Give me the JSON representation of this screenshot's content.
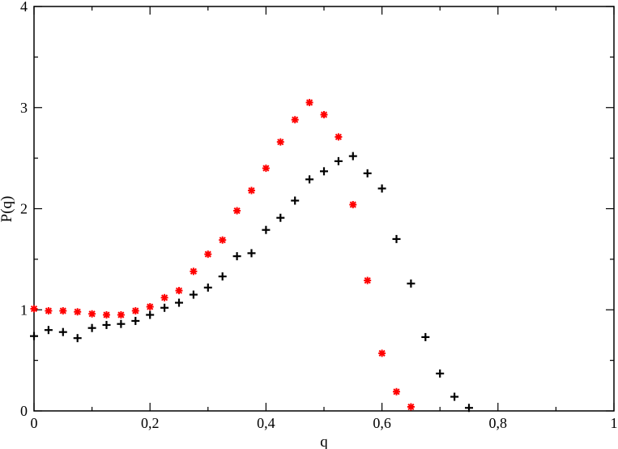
{
  "chart_data": {
    "type": "scatter",
    "title": "",
    "xlabel": "q",
    "ylabel": "P(q)",
    "xlim": [
      0,
      1
    ],
    "ylim": [
      0,
      4
    ],
    "grid": false,
    "legend": "none",
    "x_ticks": [
      {
        "value": 0,
        "label": "0"
      },
      {
        "value": 0.2,
        "label": "0,2"
      },
      {
        "value": 0.4,
        "label": "0,4"
      },
      {
        "value": 0.6,
        "label": "0,6"
      },
      {
        "value": 0.8,
        "label": "0,8"
      },
      {
        "value": 1,
        "label": "1"
      }
    ],
    "y_ticks": [
      {
        "value": 0,
        "label": "0"
      },
      {
        "value": 1,
        "label": "1"
      },
      {
        "value": 2,
        "label": "2"
      },
      {
        "value": 3,
        "label": "3"
      },
      {
        "value": 4,
        "label": "4"
      }
    ],
    "series": [
      {
        "marker": "plus",
        "color": "#000000",
        "points": [
          [
            0.0,
            0.74
          ],
          [
            0.025,
            0.8
          ],
          [
            0.05,
            0.78
          ],
          [
            0.075,
            0.72
          ],
          [
            0.1,
            0.82
          ],
          [
            0.125,
            0.85
          ],
          [
            0.15,
            0.86
          ],
          [
            0.175,
            0.89
          ],
          [
            0.2,
            0.95
          ],
          [
            0.225,
            1.02
          ],
          [
            0.25,
            1.07
          ],
          [
            0.275,
            1.15
          ],
          [
            0.3,
            1.22
          ],
          [
            0.325,
            1.33
          ],
          [
            0.35,
            1.53
          ],
          [
            0.375,
            1.56
          ],
          [
            0.4,
            1.79
          ],
          [
            0.425,
            1.91
          ],
          [
            0.45,
            2.08
          ],
          [
            0.475,
            2.29
          ],
          [
            0.5,
            2.37
          ],
          [
            0.525,
            2.47
          ],
          [
            0.55,
            2.52
          ],
          [
            0.575,
            2.35
          ],
          [
            0.6,
            2.2
          ],
          [
            0.625,
            1.7
          ],
          [
            0.65,
            1.26
          ],
          [
            0.675,
            0.73
          ],
          [
            0.7,
            0.37
          ],
          [
            0.725,
            0.14
          ],
          [
            0.75,
            0.03
          ]
        ]
      },
      {
        "marker": "asterisk",
        "color": "#ff0000",
        "points": [
          [
            0.0,
            1.01
          ],
          [
            0.025,
            0.99
          ],
          [
            0.05,
            0.99
          ],
          [
            0.075,
            0.98
          ],
          [
            0.1,
            0.96
          ],
          [
            0.125,
            0.95
          ],
          [
            0.15,
            0.95
          ],
          [
            0.175,
            0.99
          ],
          [
            0.2,
            1.03
          ],
          [
            0.225,
            1.12
          ],
          [
            0.25,
            1.19
          ],
          [
            0.275,
            1.38
          ],
          [
            0.3,
            1.55
          ],
          [
            0.325,
            1.69
          ],
          [
            0.35,
            1.98
          ],
          [
            0.375,
            2.18
          ],
          [
            0.4,
            2.4
          ],
          [
            0.425,
            2.66
          ],
          [
            0.45,
            2.88
          ],
          [
            0.475,
            3.05
          ],
          [
            0.5,
            2.93
          ],
          [
            0.525,
            2.71
          ],
          [
            0.55,
            2.04
          ],
          [
            0.575,
            1.29
          ],
          [
            0.6,
            0.57
          ],
          [
            0.625,
            0.19
          ],
          [
            0.65,
            0.04
          ]
        ]
      }
    ]
  }
}
